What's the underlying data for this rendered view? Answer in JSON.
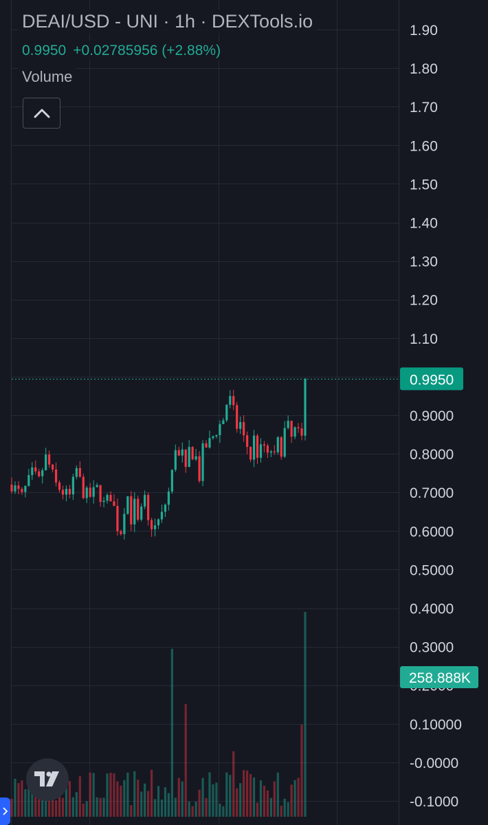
{
  "legend": {
    "title": "DEAI/USD - UNI · 1h · DEXTools.io",
    "last_price": "0.9950",
    "change": "+0.02785956 (+2.88%)",
    "volume_label": "Volume"
  },
  "colors": {
    "background": "#151821",
    "grid": "#262a35",
    "up": "#22ab94",
    "down": "#f23645",
    "axis_text": "#d1d4dc",
    "legend_text": "#b2b5be",
    "price_tag": "#089981",
    "volume_tag": "#22ab94"
  },
  "chart_data": {
    "type": "candlestick",
    "title": "DEAI/USD - UNI · 1h · DEXTools.io",
    "y_ticks": [
      "1.90",
      "1.80",
      "1.70",
      "1.60",
      "1.50",
      "1.40",
      "1.30",
      "1.20",
      "1.10",
      "1.00",
      "0.9000",
      "0.8000",
      "0.7000",
      "0.6000",
      "0.5000",
      "0.4000",
      "0.3000",
      "0.2000",
      "0.10000",
      "-0.0000",
      "-0.1000"
    ],
    "y_tick_values": [
      1.9,
      1.8,
      1.7,
      1.6,
      1.5,
      1.4,
      1.3,
      1.2,
      1.1,
      1.0,
      0.9,
      0.8,
      0.7,
      0.6,
      0.5,
      0.4,
      0.3,
      0.2,
      0.1,
      0.0,
      -0.1
    ],
    "ylim": [
      -0.12,
      1.93
    ],
    "grid": true,
    "last_price": 0.995,
    "last_price_label": "0.9950",
    "volume_label": "258.888K",
    "volume_value": 258888,
    "volume_max": 380000,
    "price_path": [
      [
        0,
        0.72
      ],
      [
        3,
        0.69
      ],
      [
        6,
        0.75
      ],
      [
        8,
        0.73
      ],
      [
        10,
        0.79
      ],
      [
        11,
        0.77
      ],
      [
        13,
        0.72
      ],
      [
        15,
        0.7
      ],
      [
        17,
        0.69
      ],
      [
        19,
        0.76
      ],
      [
        21,
        0.7
      ],
      [
        23,
        0.69
      ],
      [
        25,
        0.71
      ],
      [
        27,
        0.67
      ],
      [
        29,
        0.69
      ],
      [
        30,
        0.66
      ],
      [
        31,
        0.61
      ],
      [
        32,
        0.6
      ],
      [
        33,
        0.66
      ],
      [
        34,
        0.69
      ],
      [
        35,
        0.63
      ],
      [
        36,
        0.67
      ],
      [
        37,
        0.62
      ],
      [
        39,
        0.68
      ],
      [
        40,
        0.62
      ],
      [
        42,
        0.61
      ],
      [
        44,
        0.64
      ],
      [
        46,
        0.7
      ],
      [
        47,
        0.75
      ],
      [
        48,
        0.82
      ],
      [
        49,
        0.79
      ],
      [
        50,
        0.8
      ],
      [
        51,
        0.75
      ],
      [
        52,
        0.81
      ],
      [
        54,
        0.79
      ],
      [
        55,
        0.74
      ],
      [
        56,
        0.81
      ],
      [
        58,
        0.83
      ],
      [
        60,
        0.86
      ],
      [
        62,
        0.89
      ],
      [
        63,
        0.93
      ],
      [
        64,
        0.94
      ],
      [
        65,
        0.91
      ],
      [
        66,
        0.87
      ],
      [
        67,
        0.88
      ],
      [
        68,
        0.84
      ],
      [
        69,
        0.82
      ],
      [
        70,
        0.79
      ],
      [
        71,
        0.84
      ],
      [
        72,
        0.8
      ],
      [
        73,
        0.81
      ],
      [
        74,
        0.82
      ],
      [
        75,
        0.79
      ],
      [
        76,
        0.81
      ],
      [
        77,
        0.79
      ],
      [
        78,
        0.83
      ],
      [
        79,
        0.81
      ],
      [
        80,
        0.86
      ],
      [
        81,
        0.87
      ],
      [
        82,
        0.84
      ],
      [
        83,
        0.86
      ],
      [
        84,
        0.85
      ],
      [
        85,
        0.84
      ],
      [
        86,
        0.995
      ]
    ],
    "volume_spikes": [
      [
        47,
        0.82
      ],
      [
        51,
        0.55
      ],
      [
        65,
        0.32
      ],
      [
        85,
        0.45
      ],
      [
        86,
        1.0
      ]
    ],
    "candles": 87
  }
}
